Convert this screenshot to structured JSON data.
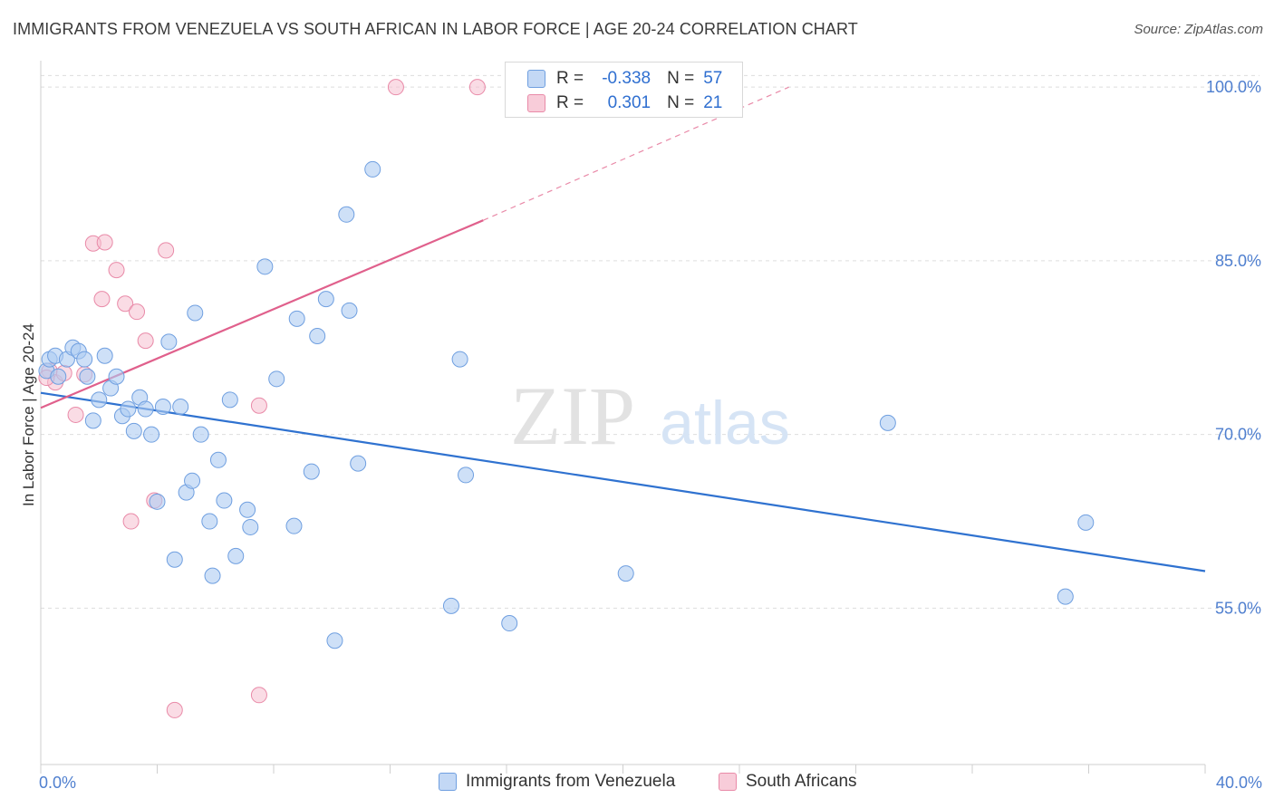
{
  "header": {
    "title": "IMMIGRANTS FROM VENEZUELA VS SOUTH AFRICAN IN LABOR FORCE | AGE 20-24 CORRELATION CHART",
    "source": "Source: ZipAtlas.com"
  },
  "watermark": {
    "zip": "ZIP",
    "atlas": "atlas"
  },
  "colors": {
    "blue_fill": "#aecbf2",
    "blue_stroke": "#6f9fe0",
    "blue_line": "#2f72d0",
    "pink_fill": "#f5bfd0",
    "pink_stroke": "#e98aa8",
    "pink_line": "#e0608c",
    "tick_label": "#4f7fcf",
    "grid": "#dddddd"
  },
  "legend_top": {
    "rows": [
      {
        "r_label": "R =",
        "r_value": "-0.338",
        "n_label": "N =",
        "n_value": "57"
      },
      {
        "r_label": "R =",
        "r_value": "0.301",
        "n_label": "N =",
        "n_value": "21"
      }
    ]
  },
  "chart_data": {
    "type": "scatter",
    "title": "IMMIGRANTS FROM VENEZUELA VS SOUTH AFRICAN IN LABOR FORCE | AGE 20-24 CORRELATION CHART",
    "xlabel": "",
    "ylabel": "In Labor Force | Age 20-24",
    "xlim": [
      0,
      40
    ],
    "ylim": [
      41.5,
      101.5
    ],
    "x_tick_labels": [
      "0.0%",
      "40.0%"
    ],
    "y_ticks": [
      55,
      70,
      85,
      100
    ],
    "y_tick_labels": [
      "55.0%",
      "70.0%",
      "85.0%",
      "100.0%"
    ],
    "grid": true,
    "legend_position": "bottom",
    "series": [
      {
        "name": "Immigrants from Venezuela",
        "R": -0.338,
        "N": 57,
        "points": [
          [
            0.2,
            75.5
          ],
          [
            0.3,
            76.5
          ],
          [
            0.5,
            76.8
          ],
          [
            0.6,
            75.0
          ],
          [
            0.9,
            76.5
          ],
          [
            1.1,
            77.5
          ],
          [
            1.3,
            77.2
          ],
          [
            1.5,
            76.5
          ],
          [
            1.6,
            75.0
          ],
          [
            1.8,
            71.2
          ],
          [
            2.0,
            73.0
          ],
          [
            2.2,
            76.8
          ],
          [
            2.4,
            74.0
          ],
          [
            2.6,
            75.0
          ],
          [
            2.8,
            71.6
          ],
          [
            3.0,
            72.2
          ],
          [
            3.2,
            70.3
          ],
          [
            3.4,
            73.2
          ],
          [
            3.6,
            72.2
          ],
          [
            3.8,
            70.0
          ],
          [
            4.0,
            64.2
          ],
          [
            4.2,
            72.4
          ],
          [
            4.4,
            78.0
          ],
          [
            4.6,
            59.2
          ],
          [
            4.8,
            72.4
          ],
          [
            5.0,
            65.0
          ],
          [
            5.2,
            66.0
          ],
          [
            5.3,
            80.5
          ],
          [
            5.5,
            70.0
          ],
          [
            5.8,
            62.5
          ],
          [
            5.9,
            57.8
          ],
          [
            6.1,
            67.8
          ],
          [
            6.3,
            64.3
          ],
          [
            6.5,
            73.0
          ],
          [
            6.7,
            59.5
          ],
          [
            7.1,
            63.5
          ],
          [
            7.2,
            62.0
          ],
          [
            7.7,
            84.5
          ],
          [
            8.1,
            74.8
          ],
          [
            8.7,
            62.1
          ],
          [
            8.8,
            80.0
          ],
          [
            9.3,
            66.8
          ],
          [
            9.5,
            78.5
          ],
          [
            9.8,
            81.7
          ],
          [
            10.1,
            52.2
          ],
          [
            10.5,
            89.0
          ],
          [
            10.6,
            80.7
          ],
          [
            10.9,
            67.5
          ],
          [
            11.4,
            92.9
          ],
          [
            14.1,
            55.2
          ],
          [
            14.4,
            76.5
          ],
          [
            14.6,
            66.5
          ],
          [
            16.1,
            53.7
          ],
          [
            20.1,
            58.0
          ],
          [
            29.1,
            71.0
          ],
          [
            35.2,
            56.0
          ],
          [
            35.9,
            62.4
          ]
        ],
        "trend": {
          "x": [
            0,
            40
          ],
          "y": [
            73.6,
            58.2
          ]
        }
      },
      {
        "name": "South Africans",
        "R": 0.301,
        "N": 21,
        "points": [
          [
            0.3,
            75.5
          ],
          [
            0.5,
            74.5
          ],
          [
            0.8,
            75.3
          ],
          [
            1.2,
            71.7
          ],
          [
            1.5,
            75.2
          ],
          [
            1.8,
            86.5
          ],
          [
            2.1,
            81.7
          ],
          [
            2.2,
            86.6
          ],
          [
            2.6,
            84.2
          ],
          [
            2.9,
            81.3
          ],
          [
            3.3,
            80.6
          ],
          [
            3.6,
            78.1
          ],
          [
            3.9,
            64.3
          ],
          [
            3.1,
            62.5
          ],
          [
            4.3,
            85.9
          ],
          [
            4.6,
            46.2
          ],
          [
            7.5,
            72.5
          ],
          [
            7.5,
            47.5
          ],
          [
            12.2,
            100.0
          ],
          [
            15.0,
            100.0
          ],
          [
            0.2,
            74.9
          ]
        ],
        "trend": {
          "x": [
            0,
            15.2
          ],
          "y": [
            72.3,
            88.5
          ]
        },
        "trend_dashed_extension": {
          "x": [
            15.2,
            25.7
          ],
          "y": [
            88.5,
            100.0
          ]
        }
      }
    ]
  }
}
